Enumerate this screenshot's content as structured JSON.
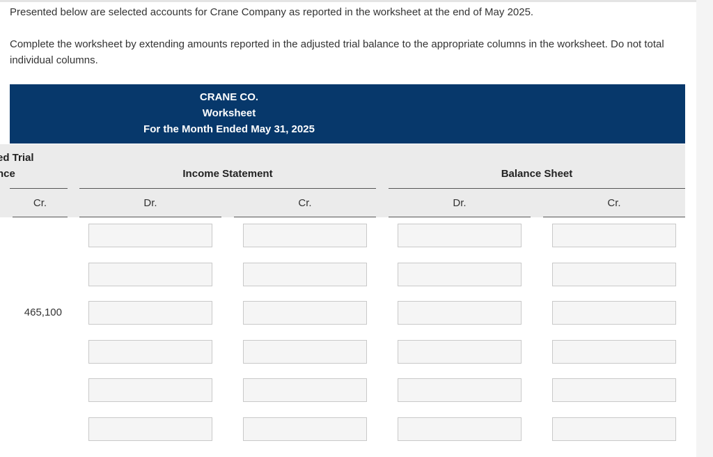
{
  "intro": "Presented below are selected accounts for Crane Company as reported in the worksheet at the end of May 2025.",
  "instructions": "Complete the worksheet by extending amounts reported in the adjusted trial balance to the appropriate columns in the worksheet. Do not total individual columns.",
  "worksheet": {
    "company": "CRANE CO.",
    "title": "Worksheet",
    "period": "For the Month Ended May 31, 2025",
    "groups": {
      "adjusted_line1": "ed Trial",
      "adjusted_line2": "nce",
      "income_statement": "Income Statement",
      "balance_sheet": "Balance Sheet"
    },
    "columns": [
      "Cr.",
      "Dr.",
      "Cr.",
      "Dr.",
      "Cr."
    ],
    "adjusted_cr": [
      null,
      null,
      "465,100",
      null,
      null,
      null
    ]
  }
}
